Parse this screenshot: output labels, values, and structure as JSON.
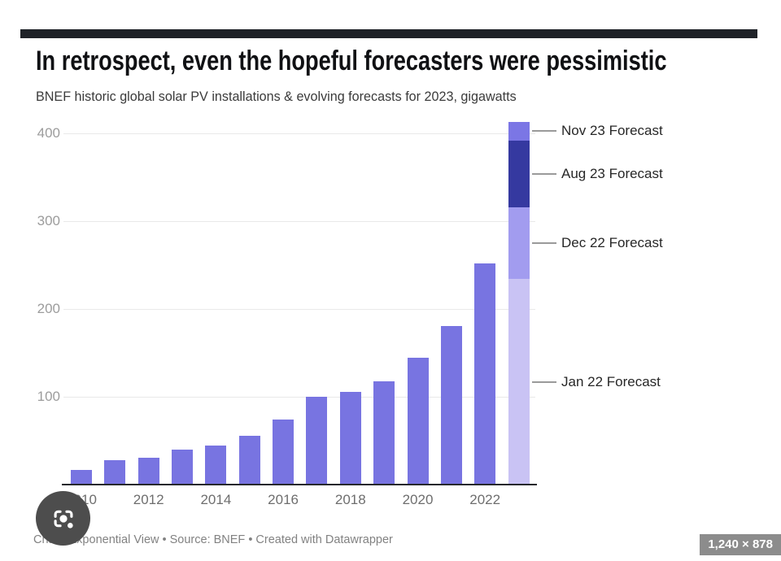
{
  "header": {
    "title": "In retrospect, even the hopeful forecasters were pessimistic",
    "subtitle": "BNEF historic global solar PV installations & evolving forecasts for 2023, gigawatts"
  },
  "chart_data": {
    "type": "bar",
    "title": "In retrospect, even the hopeful forecasters were pessimistic",
    "subtitle": "BNEF historic global solar PV installations & evolving forecasts for 2023, gigawatts",
    "ylabel": "gigawatts",
    "xlabel": "",
    "ylim": [
      0,
      420
    ],
    "y_ticks": [
      100,
      200,
      300,
      400
    ],
    "grid": true,
    "legend_position": "none",
    "bar_color": "#7874e1",
    "categories": [
      "2010",
      "2011",
      "2012",
      "2013",
      "2014",
      "2015",
      "2016",
      "2017",
      "2018",
      "2019",
      "2020",
      "2021",
      "2022"
    ],
    "values": [
      17,
      28,
      31,
      40,
      44,
      56,
      74,
      100,
      106,
      118,
      144,
      181,
      252
    ],
    "x_tick_labels": [
      "2010",
      "2012",
      "2014",
      "2016",
      "2018",
      "2020",
      "2022"
    ],
    "forecast_bar": {
      "category": "2023",
      "note": "stacked segments show cumulative evolving forecasts for 2023, gigawatts",
      "segments": [
        {
          "label": "Jan 22 Forecast",
          "cumulative_gw": 234,
          "color": "#c9c3f4"
        },
        {
          "label": "Dec 22 Forecast",
          "cumulative_gw": 316,
          "color": "#a29cef"
        },
        {
          "label": "Aug 23 Forecast",
          "cumulative_gw": 392,
          "color": "#3539a0"
        },
        {
          "label": "Nov 23 Forecast",
          "cumulative_gw": 413,
          "color": "#7b76e5"
        }
      ]
    }
  },
  "footer": {
    "credit": "Chart: Exponential View • Source: BNEF • Created with Datawrapper"
  },
  "viewer": {
    "dimensions_badge": "1,240 × 878",
    "lens_icon": "google-lens-icon"
  },
  "colors": {
    "accent_bar": "#7874e1",
    "dark_segment": "#3539a0",
    "top_rule": "#1f2228",
    "badge_bg": "#8c8c8c",
    "gridline": "#e9e9e9",
    "axis": "#26282c"
  }
}
